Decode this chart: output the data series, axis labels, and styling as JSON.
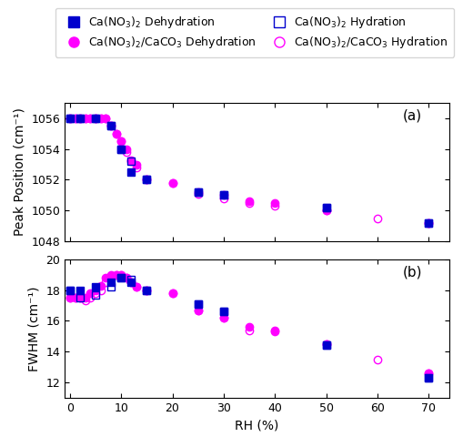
{
  "title_a": "(a)",
  "title_b": "(b)",
  "xlabel": "RH (%)",
  "ylabel_a": "Peak Position (cm⁻¹)",
  "ylabel_b": "FWHM (cm⁻¹)",
  "ca_dehyd_rh": [
    0,
    2,
    5,
    8,
    10,
    12,
    15,
    25,
    30,
    50,
    70
  ],
  "ca_dehyd_peak": [
    1056,
    1056,
    1056,
    1055.5,
    1054,
    1052.5,
    1052,
    1051.2,
    1051,
    1050.2,
    1049.2
  ],
  "ca_dehyd_fwhm": [
    18.0,
    18.0,
    18.2,
    18.5,
    18.8,
    18.5,
    18.0,
    17.1,
    16.6,
    14.4,
    12.3
  ],
  "ca_hyd_rh": [
    0,
    2,
    5,
    8,
    10,
    12,
    15,
    25,
    30,
    50,
    70
  ],
  "ca_hyd_peak": [
    1056,
    1056,
    1056,
    1055.5,
    1054,
    1053.2,
    1052,
    1051.2,
    1051,
    1050.2,
    1049.2
  ],
  "ca_hyd_fwhm": [
    18.0,
    17.5,
    17.7,
    18.2,
    18.8,
    18.7,
    18.0,
    17.1,
    16.6,
    14.4,
    12.3
  ],
  "caco3_dehyd_rh": [
    0,
    1,
    2,
    3,
    4,
    5,
    6,
    7,
    8,
    9,
    10,
    11,
    12,
    13,
    15,
    20,
    25,
    30,
    35,
    40,
    50,
    70
  ],
  "caco3_dehyd_peak": [
    1056,
    1056,
    1056,
    1056,
    1056,
    1056,
    1056,
    1056,
    1055.5,
    1055,
    1054.5,
    1054,
    1053.3,
    1053,
    1052,
    1051.8,
    1051.2,
    1051,
    1050.6,
    1050.5,
    1050.0,
    1049.2
  ],
  "caco3_dehyd_fwhm": [
    17.5,
    17.5,
    17.5,
    17.5,
    17.8,
    18.0,
    18.3,
    18.8,
    19.0,
    19.0,
    19.0,
    18.8,
    18.5,
    18.2,
    18.0,
    17.8,
    16.7,
    16.2,
    15.6,
    15.4,
    14.5,
    12.6
  ],
  "caco3_hyd_rh": [
    0,
    1,
    2,
    3,
    4,
    5,
    6,
    7,
    8,
    9,
    10,
    11,
    12,
    13,
    15,
    20,
    25,
    30,
    35,
    40,
    50,
    60,
    70
  ],
  "caco3_hyd_peak": [
    1056,
    1056,
    1056,
    1056,
    1056,
    1056,
    1056,
    1056,
    1055.5,
    1055,
    1054.5,
    1053.8,
    1053.2,
    1052.8,
    1052,
    1051.8,
    1051.1,
    1050.8,
    1050.5,
    1050.3,
    1050.0,
    1049.5,
    1049.2
  ],
  "caco3_hyd_fwhm": [
    17.5,
    17.5,
    17.5,
    17.3,
    17.5,
    17.8,
    18.0,
    18.5,
    18.8,
    19.0,
    19.0,
    18.8,
    18.5,
    18.2,
    18.0,
    17.8,
    16.7,
    16.2,
    15.4,
    15.3,
    14.5,
    13.5,
    12.6
  ],
  "blue": "#0000CD",
  "magenta": "#FF00FF",
  "ylim_a": [
    1048,
    1057
  ],
  "ylim_b": [
    11,
    20
  ],
  "xlim": [
    -1,
    74
  ],
  "yticks_a": [
    1048,
    1050,
    1052,
    1054,
    1056
  ],
  "yticks_b": [
    12,
    14,
    16,
    18,
    20
  ],
  "xticks": [
    0,
    10,
    20,
    30,
    40,
    50,
    60,
    70
  ],
  "legend_labels": [
    "Ca(NO$_3$)$_2$ Dehydration",
    "Ca(NO$_3$)$_2$/CaCO$_3$ Dehydration",
    "Ca(NO$_3$)$_2$ Hydration",
    "Ca(NO$_3$)$_2$/CaCO$_3$ Hydration"
  ],
  "ms": 6,
  "label_fontsize": 10,
  "tick_fontsize": 9,
  "legend_fontsize": 9,
  "annot_fontsize": 11
}
